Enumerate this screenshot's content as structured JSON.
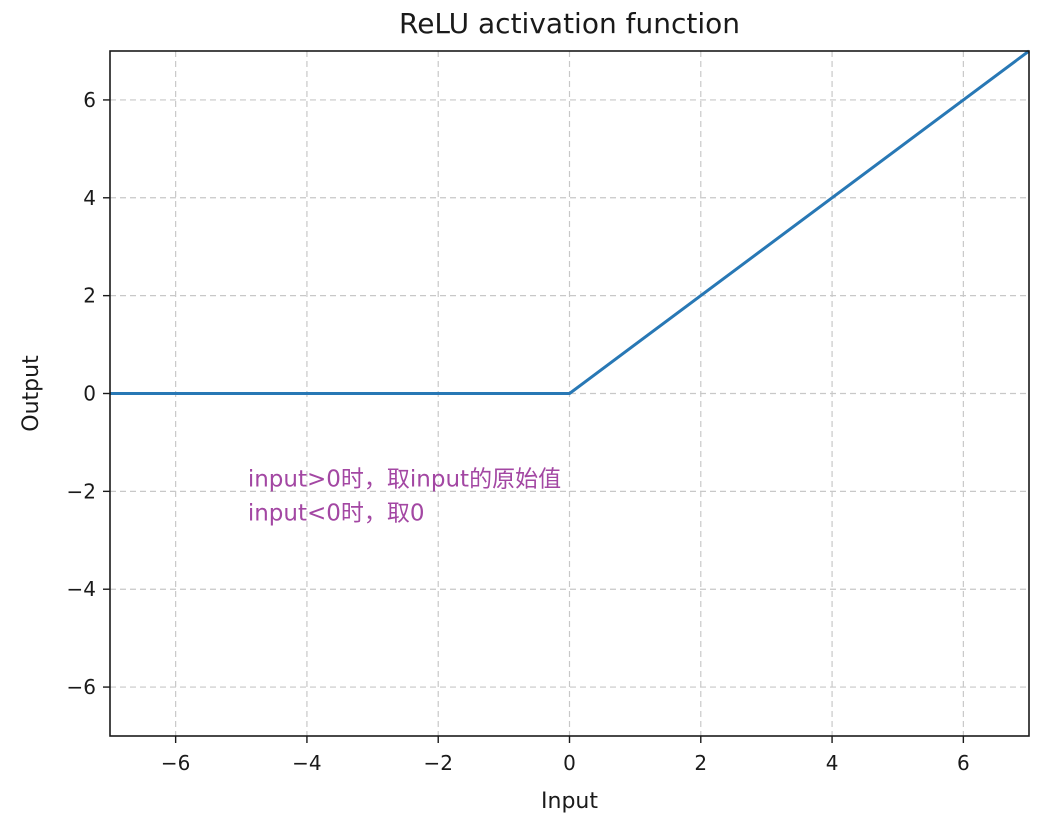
{
  "chart_data": {
    "type": "line",
    "title": "ReLU activation function",
    "xlabel": "Input",
    "ylabel": "Output",
    "xlim": [
      -7,
      7
    ],
    "ylim": [
      -7,
      7
    ],
    "xticks": [
      -6,
      -4,
      -2,
      0,
      2,
      4,
      6
    ],
    "yticks": [
      -6,
      -4,
      -2,
      0,
      2,
      4,
      6
    ],
    "xtick_labels": [
      "−6",
      "−4",
      "−2",
      "0",
      "2",
      "4",
      "6"
    ],
    "ytick_labels": [
      "−6",
      "−4",
      "−2",
      "0",
      "2",
      "4",
      "6"
    ],
    "grid": true,
    "series": [
      {
        "color": "#2878b5",
        "x": [
          -7,
          0,
          7
        ],
        "y": [
          0,
          0,
          7
        ]
      }
    ],
    "annotations": [
      {
        "text": "input>0时，取input的原始值",
        "x": -4.9,
        "y": -1.9,
        "color": "#a347a3"
      },
      {
        "text": "input<0时，取0",
        "x": -4.9,
        "y": -2.6,
        "color": "#a347a3"
      }
    ]
  }
}
